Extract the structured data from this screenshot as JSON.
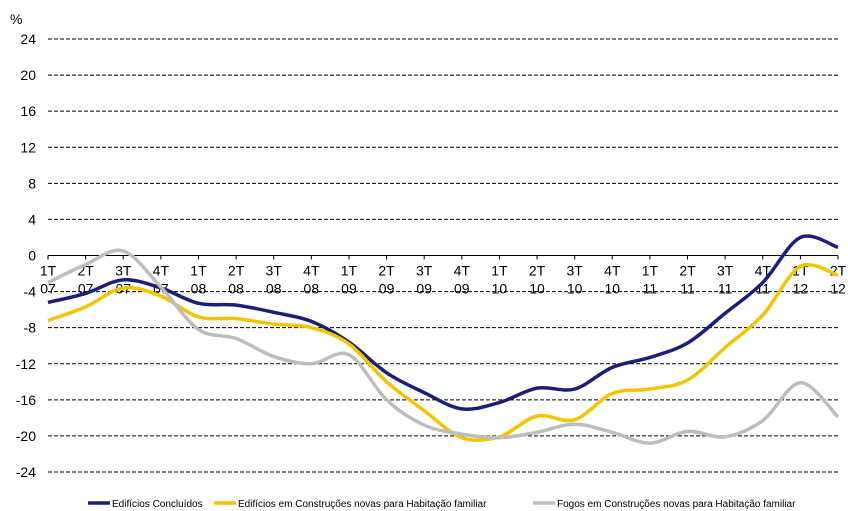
{
  "chart_data": {
    "type": "line",
    "y_label": "%",
    "categories": [
      "1T 07",
      "2T 07",
      "3T 07",
      "4T 07",
      "1T 08",
      "2T 08",
      "3T 08",
      "4T 08",
      "1T 09",
      "2T 09",
      "3T 09",
      "4T 09",
      "1T 10",
      "2T 10",
      "3T 10",
      "4T 10",
      "1T 11",
      "2T 11",
      "3T 11",
      "4T 11",
      "1T 12",
      "2T 12"
    ],
    "series": [
      {
        "name": "Edifícios Concluídos",
        "color": "#1a1f7a",
        "values": [
          -5.2,
          -4.2,
          -2.7,
          -3.6,
          -5.3,
          -5.5,
          -6.3,
          -7.3,
          -9.6,
          -13,
          -15.2,
          -17,
          -16.3,
          -14.7,
          -14.8,
          -12.4,
          -11.3,
          -9.7,
          -6.4,
          -3,
          2,
          0.9
        ]
      },
      {
        "name": "Edifícios em Construções novas para Habitação familiar",
        "color": "#f5c400",
        "values": [
          -7.2,
          -5.7,
          -3.6,
          -4.5,
          -6.8,
          -7,
          -7.6,
          -8,
          -9.8,
          -14,
          -17.2,
          -20.2,
          -20.1,
          -17.8,
          -18.2,
          -15.3,
          -14.8,
          -13.8,
          -10.2,
          -6.6,
          -1.2,
          -2.2
        ]
      },
      {
        "name": "Fogos em Construções novas para Habitação familiar",
        "color": "#bdbdbd",
        "values": [
          -3,
          -1,
          0.5,
          -3.5,
          -8.2,
          -9.2,
          -11.2,
          -12,
          -11,
          -16,
          -18.8,
          -19.8,
          -20.2,
          -19.6,
          -18.7,
          -19.6,
          -20.8,
          -19.5,
          -20.1,
          -18.3,
          -14.1,
          -17.9
        ]
      }
    ],
    "ylim": [
      -24,
      24
    ],
    "yticks": [
      -24,
      -20,
      -16,
      -12,
      -8,
      -4,
      0,
      4,
      8,
      12,
      16,
      20,
      24
    ],
    "grid": true,
    "legend": "bottom"
  }
}
